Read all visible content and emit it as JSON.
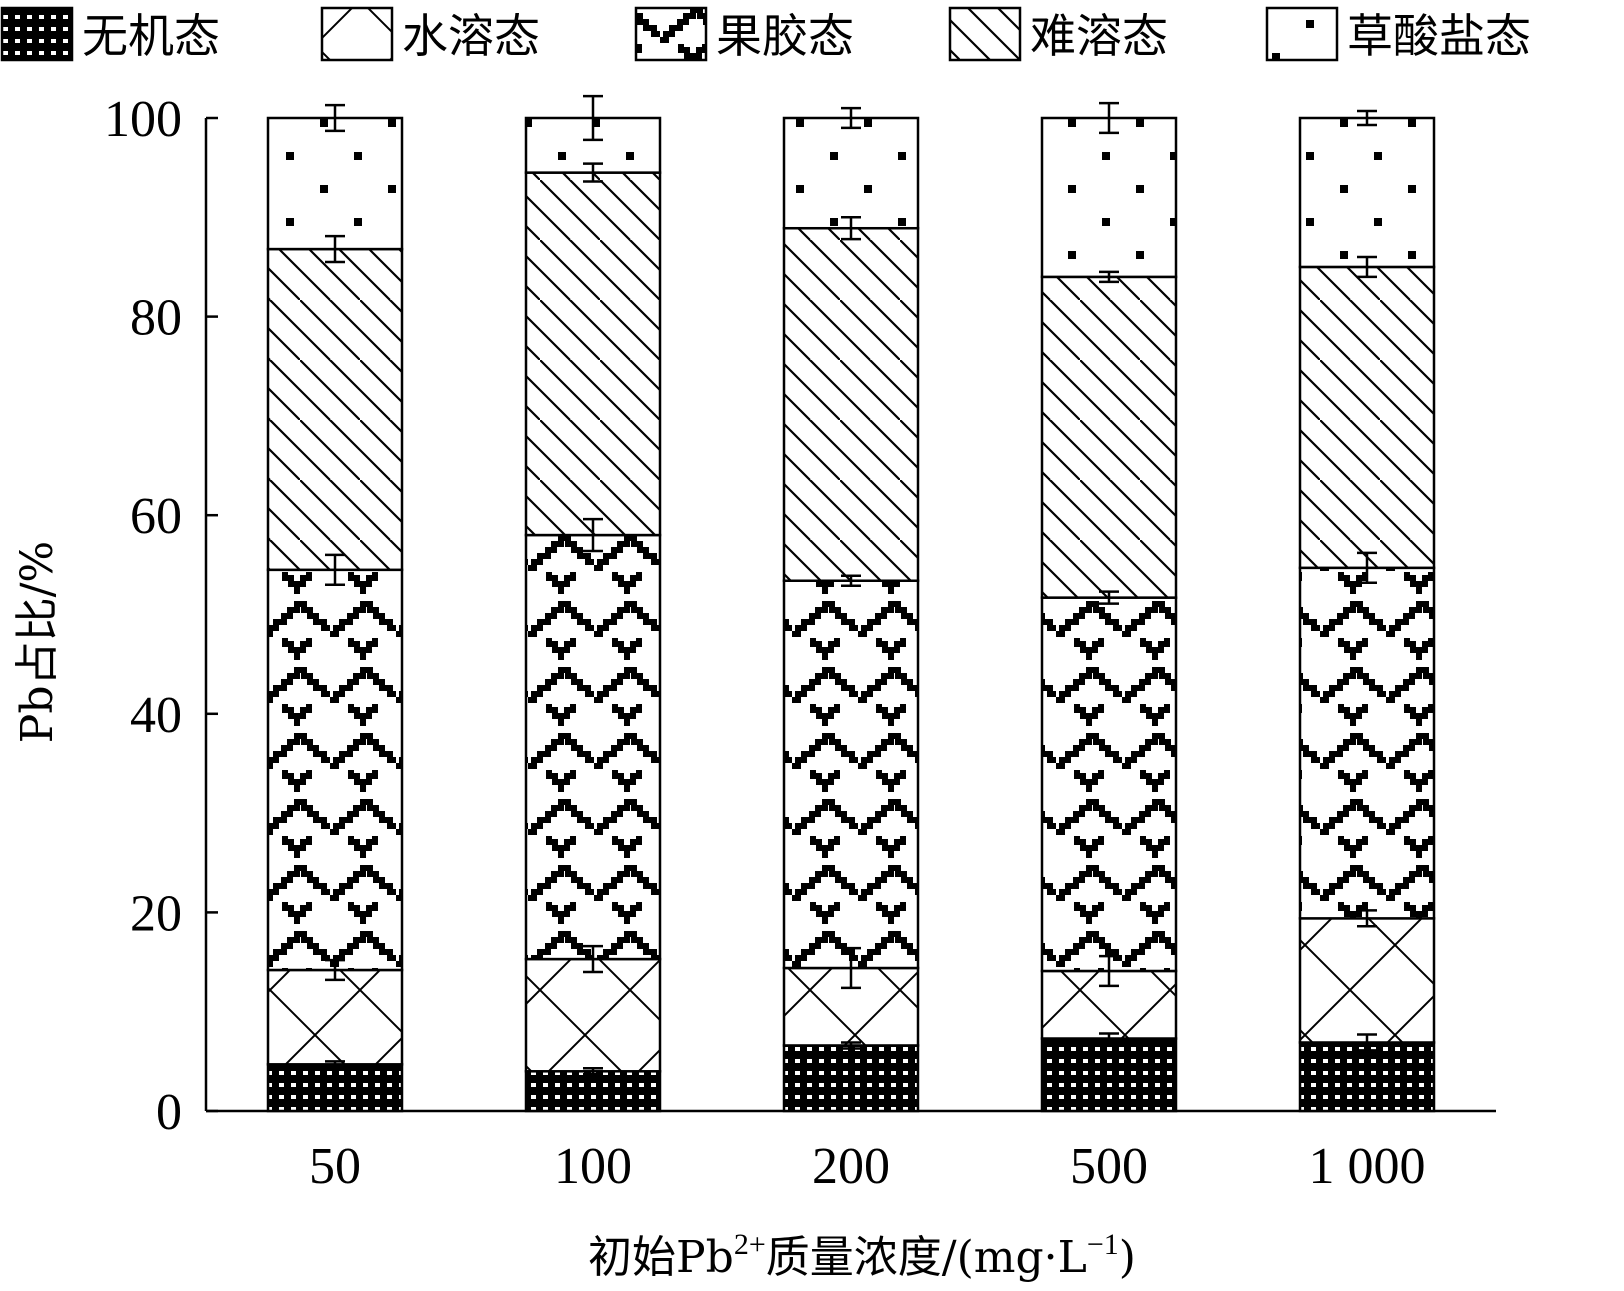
{
  "chart_data": {
    "type": "bar",
    "stacked": true,
    "categories": [
      "50",
      "100",
      "200",
      "500",
      "1 000"
    ],
    "series": [
      {
        "name": "无机态",
        "pattern": "checker",
        "values": [
          4.7,
          4.0,
          6.6,
          7.3,
          6.9
        ],
        "errors": [
          0.3,
          0.3,
          0.3,
          0.5,
          0.8
        ]
      },
      {
        "name": "水溶态",
        "pattern": "cross",
        "values": [
          9.5,
          11.3,
          7.8,
          6.8,
          12.5
        ],
        "errors": [
          1.0,
          1.3,
          2.0,
          1.5,
          0.8
        ]
      },
      {
        "name": "果胶态",
        "pattern": "scales",
        "values": [
          40.3,
          42.7,
          39.0,
          37.6,
          35.3
        ],
        "errors": [
          1.5,
          1.6,
          0.5,
          0.6,
          1.5
        ]
      },
      {
        "name": "难溶态",
        "pattern": "diagonal",
        "values": [
          32.3,
          36.5,
          35.5,
          32.3,
          30.3
        ],
        "errors": [
          1.3,
          0.9,
          1.1,
          0.5,
          1.0
        ]
      },
      {
        "name": "草酸盐态",
        "pattern": "dots",
        "values": [
          13.2,
          5.5,
          11.1,
          16.0,
          15.0
        ],
        "errors": [
          1.3,
          2.2,
          1.0,
          1.5,
          0.7
        ]
      }
    ],
    "y_axis": {
      "label_main": "Pb占比/%",
      "ticks": [
        "0",
        "20",
        "40",
        "60",
        "80",
        "100"
      ],
      "ylim": [
        0,
        100
      ]
    },
    "x_axis": {
      "label_prefix": "初始Pb",
      "label_sup": "2+",
      "label_mid": "质量浓度/(mg·L",
      "label_sup2": "−1",
      "label_suffix": ")"
    },
    "legend": {
      "position": "top"
    },
    "grid": false
  }
}
